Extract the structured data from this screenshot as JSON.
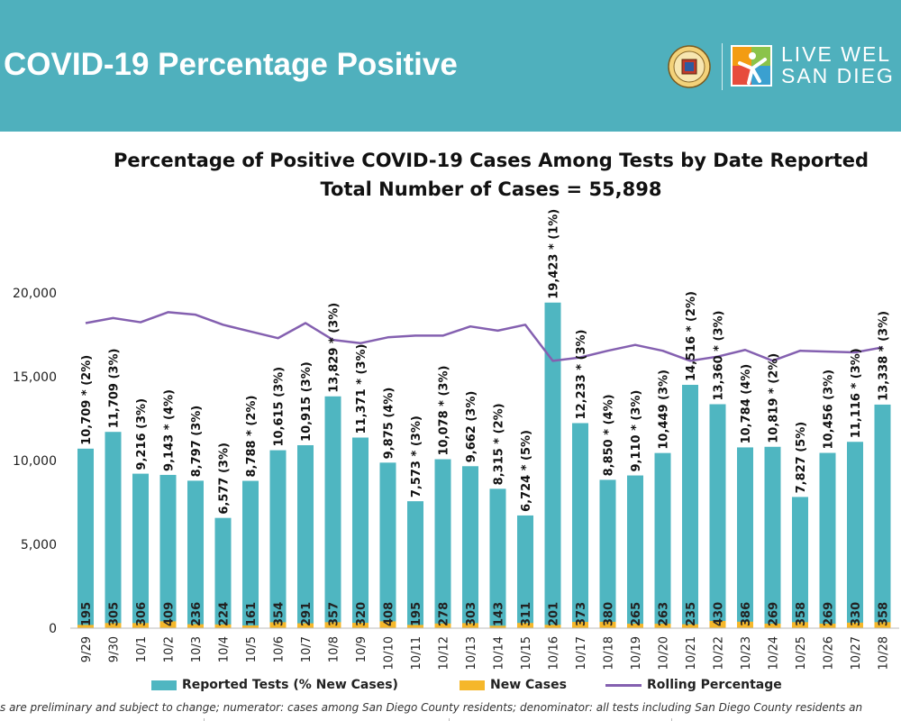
{
  "header": {
    "title": "COVID-19 Percentage Positive",
    "brand_line1": "LIVE WEL",
    "brand_line2": "SAN DIEG"
  },
  "colors": {
    "banner": "#4fb0bd",
    "tests": "#4fb6c1",
    "cases": "#f5b72a",
    "rolling": "#8460b0"
  },
  "chart_data": {
    "type": "bar",
    "title": "Percentage of Positive COVID-19 Cases Among Tests by Date Reported",
    "subtitle": "Total Number of Cases = 55,898",
    "categories": [
      "9/29",
      "9/30",
      "10/1",
      "10/2",
      "10/3",
      "10/4",
      "10/5",
      "10/6",
      "10/7",
      "10/8",
      "10/9",
      "10/10",
      "10/11",
      "10/12",
      "10/13",
      "10/14",
      "10/15",
      "10/16",
      "10/17",
      "10/18",
      "10/19",
      "10/20",
      "10/21",
      "10/22",
      "10/23",
      "10/24",
      "10/25",
      "10/26",
      "10/27",
      "10/28"
    ],
    "ylim": [
      0,
      20000
    ],
    "yticks": [
      0,
      5000,
      10000,
      15000,
      20000
    ],
    "ytick_labels": [
      "0",
      "5,000",
      "10,000",
      "15,000",
      "20,000"
    ],
    "series": [
      {
        "name": "Reported Tests (% New Cases)",
        "values": [
          10709,
          11709,
          9216,
          9143,
          8797,
          6577,
          8788,
          10615,
          10915,
          13829,
          11371,
          9875,
          7573,
          10078,
          9662,
          8315,
          6724,
          19423,
          12233,
          8850,
          9110,
          10449,
          14516,
          13360,
          10784,
          10819,
          7827,
          10456,
          11116,
          13338
        ],
        "labels": [
          "10,709 * (2%)",
          "11,709 (3%)",
          "9,216 (3%)",
          "9,143 * (4%)",
          "8,797 (3%)",
          "6,577 (3%)",
          "8,788 * (2%)",
          "10,615 (3%)",
          "10,915 (3%)",
          "13,829 * (3%)",
          "11,371 * (3%)",
          "9,875 (4%)",
          "7,573 * (3%)",
          "10,078 * (3%)",
          "9,662 (3%)",
          "8,315 * (2%)",
          "6,724 * (5%)",
          "19,423 * (1%)",
          "12,233 * (3%)",
          "8,850 * (4%)",
          "9,110 * (3%)",
          "10,449 (3%)",
          "14,516 * (2%)",
          "13,360 * (3%)",
          "10,784 (4%)",
          "10,819 * (2%)",
          "7,827 (5%)",
          "10,456 (3%)",
          "11,116 * (3%)",
          "13,338 * (3%)"
        ]
      },
      {
        "name": "New Cases",
        "values": [
          195,
          305,
          306,
          409,
          236,
          224,
          161,
          354,
          291,
          357,
          320,
          408,
          195,
          278,
          303,
          143,
          311,
          201,
          373,
          380,
          265,
          263,
          235,
          430,
          386,
          269,
          358,
          269,
          330,
          358
        ]
      },
      {
        "name": "Rolling Percentage",
        "values": [
          18200,
          18500,
          18250,
          18850,
          18700,
          18100,
          17700,
          17300,
          18200,
          17200,
          17000,
          17350,
          17450,
          17450,
          18000,
          17750,
          18100,
          15950,
          16150,
          16550,
          16900,
          16550,
          15950,
          16200,
          16600,
          15950,
          16550,
          16500,
          16450,
          16750
        ]
      }
    ]
  },
  "footnote": "s are preliminary and subject to change; numerator: cases among San Diego County residents; denominator: all tests including San Diego County residents an"
}
